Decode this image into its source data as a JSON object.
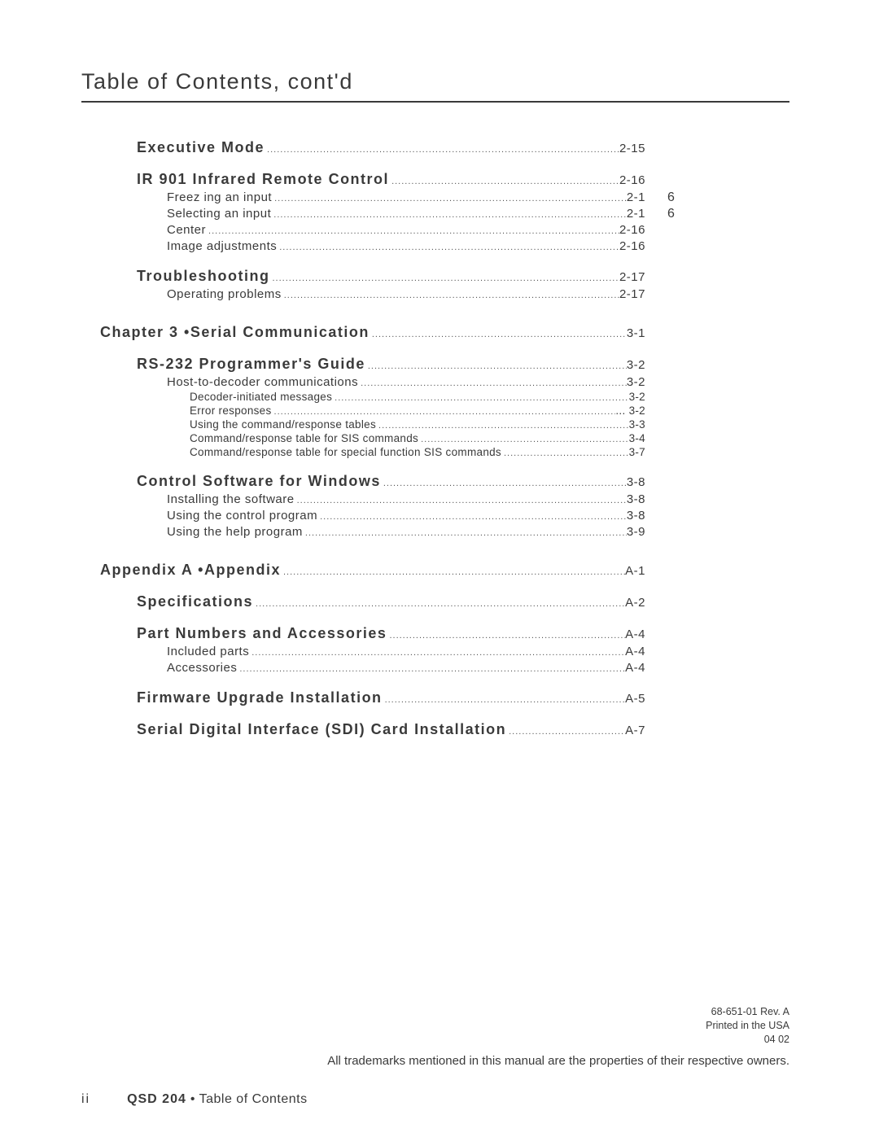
{
  "title": "Table of Contents, cont'd",
  "dot_fill": "....................................................................................................................................................................................................................................................",
  "sections": [
    {
      "level": 1,
      "label": "Executive Mode",
      "page": "2-15",
      "note": ""
    },
    {
      "level": 1,
      "label": "IR 901 Infrared Remote Control",
      "page": "2-16",
      "note": ""
    },
    {
      "level": 2,
      "label": "Freez ing an input",
      "page": "2-1",
      "note": "6"
    },
    {
      "level": 2,
      "label": "Selecting an input",
      "page": "2-1",
      "note": "6"
    },
    {
      "level": 2,
      "label": "Center",
      "page": "2-16",
      "note": ""
    },
    {
      "level": 2,
      "label": "Image adjustments",
      "page": "2-16",
      "note": ""
    },
    {
      "level": 1,
      "label": "Troubleshooting",
      "page": "2-17",
      "note": ""
    },
    {
      "level": 2,
      "label": "Operating problems",
      "page": "2-17",
      "note": ""
    },
    {
      "level": 0,
      "label": "Chapter 3 •Serial Communication",
      "page": "3-1",
      "note": ""
    },
    {
      "level": 1,
      "label": "RS-232 Programmer's Guide",
      "page": "3-2",
      "note": ""
    },
    {
      "level": 2,
      "label": "Host-to-decoder communications",
      "page": "3-2",
      "note": ""
    },
    {
      "level": 3,
      "label": "Decoder-initiated messages",
      "page": "3-2",
      "note": ""
    },
    {
      "level": 3,
      "label": "Error responses",
      "page": "... 3-2",
      "note": ""
    },
    {
      "level": 3,
      "label": "Using the command/response tables",
      "page": "3-3",
      "note": ""
    },
    {
      "level": 3,
      "label": "Command/response table for SIS commands",
      "page": "3-4",
      "note": ""
    },
    {
      "level": 3,
      "label": "Command/response table for special function SIS commands",
      "page": "3-7",
      "note": ""
    },
    {
      "level": 1,
      "label": "Control Software for Windows",
      "page": "3-8",
      "note": ""
    },
    {
      "level": 2,
      "label": "Installing the software",
      "page": "3-8",
      "note": ""
    },
    {
      "level": 2,
      "label": "Using the control program",
      "page": "3-8",
      "note": ""
    },
    {
      "level": 2,
      "label": "Using the help program",
      "page": "3-9",
      "note": ""
    },
    {
      "level": 0,
      "label": "Appendix A •Appendix",
      "page": "A-1",
      "note": ""
    },
    {
      "level": 1,
      "label": "Specifications",
      "page": "A-2",
      "note": ""
    },
    {
      "level": 1,
      "label": "Part Numbers and Accessories",
      "page": "A-4",
      "note": ""
    },
    {
      "level": 2,
      "label": "Included parts",
      "page": "A-4",
      "note": ""
    },
    {
      "level": 2,
      "label": "Accessories",
      "page": "A-4",
      "note": ""
    },
    {
      "level": 1,
      "label": "Firmware Upgrade Installation",
      "page": "A-5",
      "note": ""
    },
    {
      "level": 1,
      "label": "Serial Digital Interface (SDI) Card Installation",
      "page": "A-7",
      "note": ""
    }
  ],
  "footer": {
    "doc_rev": "68-651-01  Rev. A",
    "printed": "Printed in the USA",
    "date": "04 02",
    "trademark": "All trademarks mentioned in this manual are the properties of their respective owners.",
    "page_num": "ii",
    "product": "QSD 204",
    "sep": "•",
    "section": "Table of Contents"
  }
}
